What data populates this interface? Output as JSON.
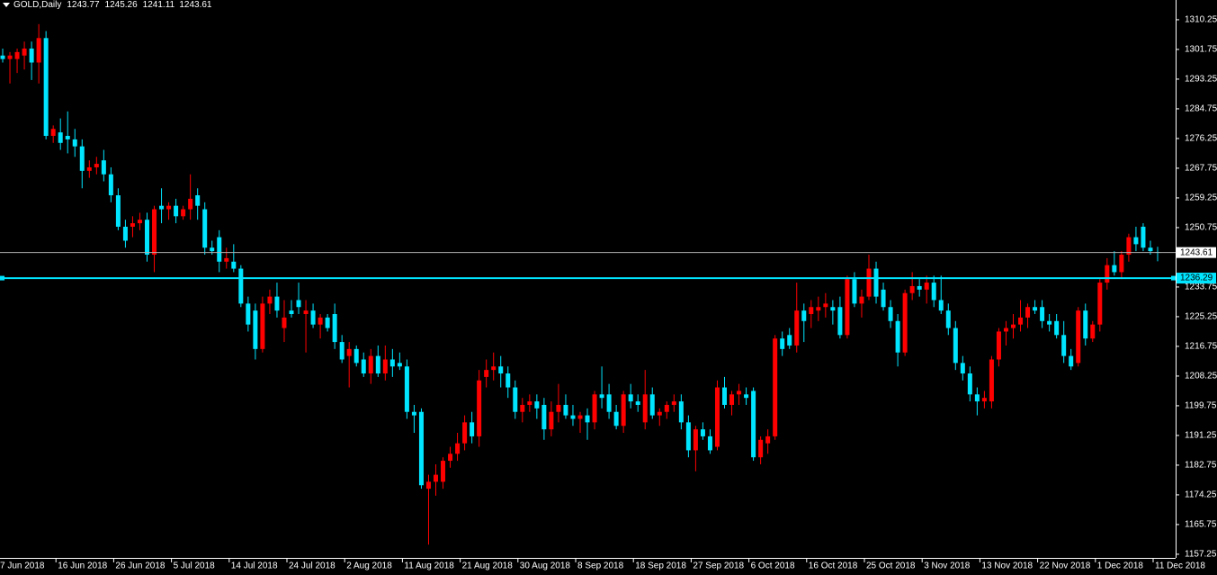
{
  "chart_data": {
    "type": "candlestick",
    "title": "GOLD,Daily",
    "categories": [
      "7 Jun 2018",
      null,
      null,
      null,
      null,
      null,
      null,
      null,
      "16 Jun 2018",
      null,
      null,
      null,
      null,
      null,
      null,
      null,
      "26 Jun 2018",
      null,
      null,
      null,
      null,
      null,
      null,
      null,
      "5 Jul 2018",
      null,
      null,
      null,
      null,
      null,
      null,
      null,
      "14 Jul 2018",
      null,
      null,
      null,
      null,
      null,
      null,
      null,
      "24 Jul 2018",
      null,
      null,
      null,
      null,
      null,
      null,
      null,
      "2 Aug 2018",
      null,
      null,
      null,
      null,
      null,
      null,
      null,
      "11 Aug 2018",
      null,
      null,
      null,
      null,
      null,
      null,
      null,
      "21 Aug 2018",
      null,
      null,
      null,
      null,
      null,
      null,
      null,
      "30 Aug 2018",
      null,
      null,
      null,
      null,
      null,
      null,
      null,
      "8 Sep 2018",
      null,
      null,
      null,
      null,
      null,
      null,
      null,
      "18 Sep 2018",
      null,
      null,
      null,
      null,
      null,
      null,
      null,
      "27 Sep 2018",
      null,
      null,
      null,
      null,
      null,
      null,
      null,
      "6 Oct 2018",
      null,
      null,
      null,
      null,
      null,
      null,
      null,
      "16 Oct 2018",
      null,
      null,
      null,
      null,
      null,
      null,
      null,
      "25 Oct 2018",
      null,
      null,
      null,
      null,
      null,
      null,
      null,
      "3 Nov 2018",
      null,
      null,
      null,
      null,
      null,
      null,
      null,
      "13 Nov 2018",
      null,
      null,
      null,
      null,
      null,
      null,
      null,
      "22 Nov 2018",
      null,
      null,
      null,
      null,
      null,
      null,
      null,
      "1 Dec 2018",
      null,
      null,
      null,
      null,
      null,
      null,
      null,
      "11 Dec 2018"
    ],
    "ohlc": [
      [
        1300,
        1302,
        1298,
        1299
      ],
      [
        1299,
        1301,
        1292,
        1300
      ],
      [
        1299,
        1302,
        1295,
        1301
      ],
      [
        1300,
        1304,
        1296,
        1302
      ],
      [
        1302,
        1304,
        1293,
        1298
      ],
      [
        1298,
        1309,
        1292,
        1305
      ],
      [
        1305,
        1307,
        1276,
        1277
      ],
      [
        1277,
        1280,
        1275,
        1279
      ],
      [
        1278,
        1282,
        1273,
        1275
      ],
      [
        1277,
        1284,
        1272,
        1276
      ],
      [
        1276,
        1279,
        1271,
        1274
      ],
      [
        1274,
        1276,
        1262,
        1267
      ],
      [
        1267,
        1270,
        1265,
        1268
      ],
      [
        1268,
        1271,
        1266,
        1269
      ],
      [
        1270,
        1273,
        1264,
        1266
      ],
      [
        1266,
        1268,
        1258,
        1260
      ],
      [
        1260,
        1262,
        1250,
        1251
      ],
      [
        1251,
        1253,
        1245,
        1247
      ],
      [
        1251,
        1254,
        1248,
        1252
      ],
      [
        1252,
        1255,
        1250,
        1253
      ],
      [
        1253,
        1255,
        1241,
        1243
      ],
      [
        1243,
        1257,
        1238,
        1256
      ],
      [
        1257,
        1262,
        1252,
        1256
      ],
      [
        1256,
        1258,
        1253,
        1257
      ],
      [
        1257,
        1259,
        1252,
        1254
      ],
      [
        1254,
        1257,
        1253,
        1256
      ],
      [
        1256,
        1266,
        1253,
        1259
      ],
      [
        1260,
        1262,
        1253,
        1257
      ],
      [
        1256,
        1258,
        1243,
        1245
      ],
      [
        1245,
        1247,
        1243,
        1244
      ],
      [
        1248,
        1250,
        1238,
        1241
      ],
      [
        1241,
        1245,
        1239,
        1242
      ],
      [
        1241,
        1246,
        1238,
        1239
      ],
      [
        1239,
        1240,
        1228,
        1229
      ],
      [
        1229,
        1231,
        1221,
        1223
      ],
      [
        1227,
        1229,
        1213,
        1216
      ],
      [
        1216,
        1231,
        1215,
        1229
      ],
      [
        1229,
        1233,
        1226,
        1231
      ],
      [
        1231,
        1235,
        1225,
        1227
      ],
      [
        1222,
        1230,
        1218,
        1225
      ],
      [
        1227,
        1230,
        1225,
        1226
      ],
      [
        1230,
        1235,
        1226,
        1228
      ],
      [
        1226,
        1230,
        1215,
        1227
      ],
      [
        1227,
        1229,
        1222,
        1223
      ],
      [
        1223,
        1226,
        1219,
        1225
      ],
      [
        1225,
        1226,
        1221,
        1222
      ],
      [
        1226,
        1229,
        1216,
        1218
      ],
      [
        1218,
        1220,
        1212,
        1213
      ],
      [
        1214,
        1218,
        1205,
        1216
      ],
      [
        1216,
        1217,
        1211,
        1212
      ],
      [
        1213,
        1215,
        1208,
        1209
      ],
      [
        1209,
        1216,
        1206,
        1214
      ],
      [
        1214,
        1217,
        1208,
        1209
      ],
      [
        1209,
        1217,
        1207,
        1213
      ],
      [
        1213,
        1216,
        1208,
        1211
      ],
      [
        1212,
        1215,
        1210,
        1211
      ],
      [
        1211,
        1213,
        1196,
        1198
      ],
      [
        1198,
        1200,
        1192,
        1197
      ],
      [
        1198,
        1199,
        1176,
        1177
      ],
      [
        1176,
        1180,
        1160,
        1178
      ],
      [
        1178,
        1183,
        1174,
        1180
      ],
      [
        1178,
        1185,
        1176,
        1184
      ],
      [
        1184,
        1188,
        1182,
        1186
      ],
      [
        1186,
        1192,
        1184,
        1189
      ],
      [
        1189,
        1197,
        1187,
        1195
      ],
      [
        1195,
        1198,
        1189,
        1191
      ],
      [
        1191,
        1210,
        1188,
        1207
      ],
      [
        1208,
        1213,
        1205,
        1210
      ],
      [
        1210,
        1215,
        1207,
        1211
      ],
      [
        1211,
        1214,
        1205,
        1209
      ],
      [
        1209,
        1211,
        1202,
        1205
      ],
      [
        1205,
        1207,
        1196,
        1198
      ],
      [
        1198,
        1202,
        1195,
        1200
      ],
      [
        1200,
        1203,
        1198,
        1201
      ],
      [
        1201,
        1203,
        1196,
        1199
      ],
      [
        1200,
        1202,
        1190,
        1193
      ],
      [
        1193,
        1201,
        1191,
        1198
      ],
      [
        1198,
        1206,
        1195,
        1200
      ],
      [
        1200,
        1203,
        1196,
        1197
      ],
      [
        1197,
        1200,
        1194,
        1196
      ],
      [
        1196,
        1198,
        1192,
        1197
      ],
      [
        1197,
        1199,
        1190,
        1195
      ],
      [
        1195,
        1204,
        1193,
        1203
      ],
      [
        1203,
        1211,
        1199,
        1202
      ],
      [
        1203,
        1206,
        1196,
        1198
      ],
      [
        1198,
        1200,
        1193,
        1194
      ],
      [
        1194,
        1204,
        1192,
        1203
      ],
      [
        1203,
        1206,
        1199,
        1201
      ],
      [
        1201,
        1203,
        1198,
        1200
      ],
      [
        1195,
        1210,
        1193,
        1203
      ],
      [
        1203,
        1205,
        1196,
        1197
      ],
      [
        1197,
        1199,
        1194,
        1198
      ],
      [
        1198,
        1201,
        1196,
        1200
      ],
      [
        1200,
        1203,
        1198,
        1201
      ],
      [
        1201,
        1203,
        1193,
        1195
      ],
      [
        1195,
        1197,
        1185,
        1187
      ],
      [
        1187,
        1194,
        1181,
        1193
      ],
      [
        1193,
        1195,
        1190,
        1191
      ],
      [
        1191,
        1193,
        1186,
        1187
      ],
      [
        1188,
        1207,
        1187,
        1205
      ],
      [
        1205,
        1208,
        1199,
        1200
      ],
      [
        1200,
        1204,
        1197,
        1203
      ],
      [
        1203,
        1206,
        1200,
        1204
      ],
      [
        1203,
        1205,
        1200,
        1202
      ],
      [
        1204,
        1205,
        1184,
        1185
      ],
      [
        1185,
        1191,
        1183,
        1190
      ],
      [
        1189,
        1193,
        1186,
        1191
      ],
      [
        1191,
        1220,
        1190,
        1219
      ],
      [
        1219,
        1221,
        1214,
        1216
      ],
      [
        1220,
        1222,
        1216,
        1217
      ],
      [
        1217,
        1235,
        1215,
        1227
      ],
      [
        1227,
        1229,
        1218,
        1224
      ],
      [
        1226,
        1230,
        1222,
        1228
      ],
      [
        1227,
        1231,
        1224,
        1228
      ],
      [
        1228,
        1232,
        1225,
        1229
      ],
      [
        1228,
        1230,
        1223,
        1227
      ],
      [
        1228,
        1231,
        1219,
        1220
      ],
      [
        1220,
        1237,
        1219,
        1236
      ],
      [
        1236,
        1238,
        1228,
        1229
      ],
      [
        1229,
        1233,
        1225,
        1231
      ],
      [
        1231,
        1243,
        1230,
        1239
      ],
      [
        1239,
        1241,
        1229,
        1231
      ],
      [
        1233,
        1235,
        1227,
        1228
      ],
      [
        1228,
        1230,
        1222,
        1224
      ],
      [
        1224,
        1226,
        1211,
        1215
      ],
      [
        1215,
        1233,
        1214,
        1232
      ],
      [
        1232,
        1238,
        1230,
        1234
      ],
      [
        1234,
        1236,
        1231,
        1233
      ],
      [
        1233,
        1237,
        1229,
        1235
      ],
      [
        1235,
        1237,
        1228,
        1230
      ],
      [
        1230,
        1237,
        1226,
        1227
      ],
      [
        1227,
        1229,
        1220,
        1222
      ],
      [
        1222,
        1224,
        1210,
        1212
      ],
      [
        1212,
        1214,
        1207,
        1209
      ],
      [
        1209,
        1211,
        1201,
        1203
      ],
      [
        1203,
        1205,
        1197,
        1201
      ],
      [
        1201,
        1204,
        1199,
        1202
      ],
      [
        1201,
        1214,
        1199,
        1213
      ],
      [
        1213,
        1222,
        1211,
        1221
      ],
      [
        1221,
        1224,
        1217,
        1222
      ],
      [
        1222,
        1226,
        1219,
        1223
      ],
      [
        1223,
        1230,
        1221,
        1225
      ],
      [
        1225,
        1229,
        1222,
        1228
      ],
      [
        1228,
        1230,
        1226,
        1227
      ],
      [
        1228,
        1230,
        1222,
        1224
      ],
      [
        1224,
        1226,
        1221,
        1223
      ],
      [
        1224,
        1226,
        1219,
        1220
      ],
      [
        1220,
        1224,
        1212,
        1214
      ],
      [
        1214,
        1216,
        1210,
        1211
      ],
      [
        1212,
        1228,
        1211,
        1227
      ],
      [
        1227,
        1229,
        1217,
        1219
      ],
      [
        1219,
        1224,
        1218,
        1223
      ],
      [
        1223,
        1236,
        1221,
        1235
      ],
      [
        1235,
        1242,
        1233,
        1240
      ],
      [
        1240,
        1244,
        1237,
        1238
      ],
      [
        1238,
        1244,
        1236,
        1243
      ],
      [
        1243,
        1249,
        1241,
        1248
      ],
      [
        1248,
        1251,
        1244,
        1246
      ],
      [
        1251,
        1252,
        1244,
        1245
      ],
      [
        1245,
        1247,
        1243,
        1244
      ],
      [
        1243.77,
        1245.26,
        1241.11,
        1243.61
      ]
    ],
    "up_color": "#ff0000",
    "down_color": "#00e5ff",
    "level": {
      "value": 1236.29,
      "color": "#00e5ff"
    },
    "ylim": [
      1156.2,
      1315.9
    ],
    "yticks": [
      1310.25,
      1301.75,
      1293.25,
      1284.75,
      1276.25,
      1267.75,
      1259.25,
      1250.75,
      1233.75,
      1225.25,
      1216.75,
      1208.25,
      1199.75,
      1191.25,
      1182.75,
      1174.25,
      1165.75,
      1157.25
    ]
  }
}
